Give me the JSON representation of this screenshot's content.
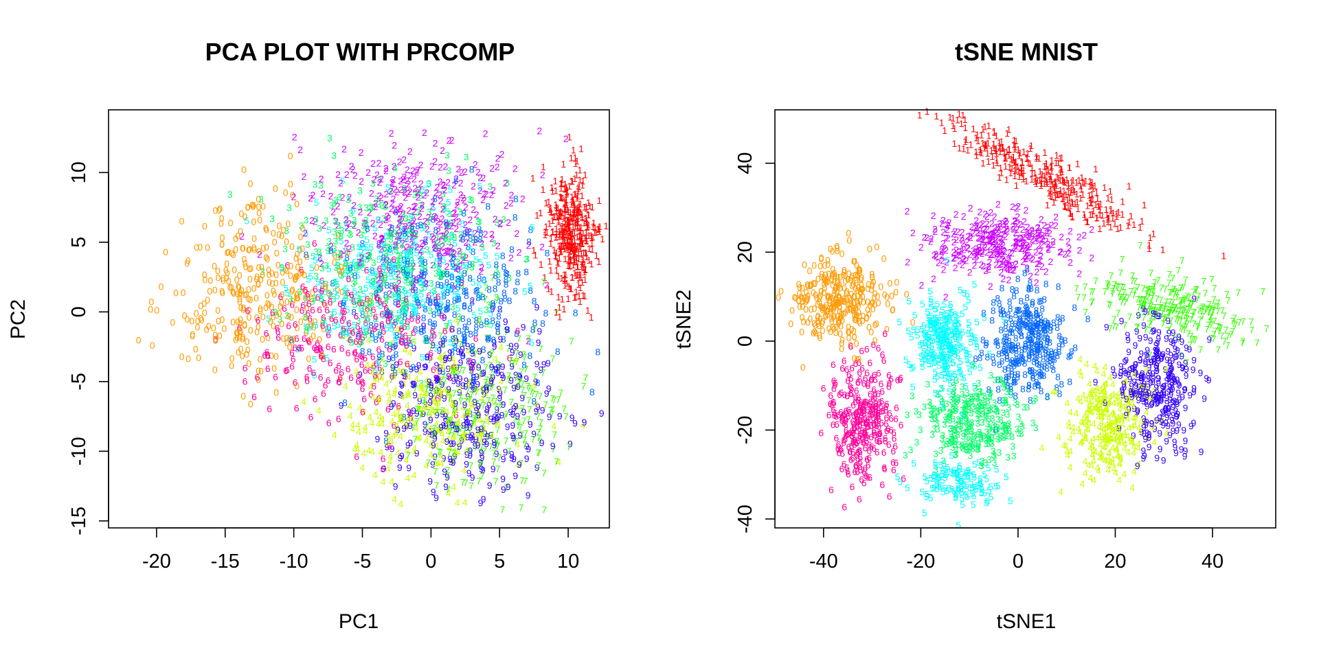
{
  "chart_data": [
    {
      "type": "scatter",
      "title": "PCA PLOT WITH PRCOMP",
      "xlabel": "PC1",
      "ylabel": "PC2",
      "xlim": [
        -23.5,
        13
      ],
      "ylim": [
        -15.5,
        14.5
      ],
      "xticks": [
        -20,
        -15,
        -10,
        -5,
        0,
        5,
        10
      ],
      "yticks": [
        -15,
        -10,
        -5,
        0,
        5,
        10
      ],
      "marker": "digit label",
      "clusters": [
        {
          "label": "0",
          "color": "#FF9900",
          "center": [
            -13,
            1.5
          ],
          "spread": [
            3.2,
            3.2
          ],
          "count": 320
        },
        {
          "label": "1",
          "color": "#FF0000",
          "center": [
            10.2,
            5.5
          ],
          "spread": [
            0.9,
            2.4
          ],
          "count": 380
        },
        {
          "label": "2",
          "color": "#CC00FF",
          "center": [
            -1,
            7
          ],
          "spread": [
            4.0,
            3.0
          ],
          "count": 320
        },
        {
          "label": "3",
          "color": "#00FF66",
          "center": [
            -3,
            4
          ],
          "spread": [
            4.0,
            3.2
          ],
          "count": 300
        },
        {
          "label": "4",
          "color": "#CCFF00",
          "center": [
            0,
            -7
          ],
          "spread": [
            3.2,
            2.6
          ],
          "count": 280
        },
        {
          "label": "5",
          "color": "#00FFFF",
          "center": [
            -3,
            2
          ],
          "spread": [
            3.8,
            2.8
          ],
          "count": 260
        },
        {
          "label": "6",
          "color": "#FF0099",
          "center": [
            -6,
            -2
          ],
          "spread": [
            3.8,
            2.8
          ],
          "count": 240
        },
        {
          "label": "7",
          "color": "#33FF00",
          "center": [
            4,
            -7
          ],
          "spread": [
            3.0,
            3.2
          ],
          "count": 260
        },
        {
          "label": "8",
          "color": "#0066FF",
          "center": [
            1,
            1
          ],
          "spread": [
            4.0,
            3.0
          ],
          "count": 260
        },
        {
          "label": "9",
          "color": "#3300FF",
          "center": [
            3,
            -7
          ],
          "spread": [
            3.2,
            2.8
          ],
          "count": 300
        }
      ]
    },
    {
      "type": "scatter",
      "title": "tSNE MNIST",
      "xlabel": "tSNE1",
      "ylabel": "tSNE2",
      "xlim": [
        -50,
        53
      ],
      "ylim": [
        -42,
        52
      ],
      "xticks": [
        -40,
        -20,
        0,
        20,
        40
      ],
      "yticks": [
        -40,
        -20,
        0,
        20,
        40
      ],
      "marker": "digit label",
      "clusters": [
        {
          "label": "0",
          "color": "#FF9900",
          "center": [
            -37,
            9
          ],
          "spread": [
            5.0,
            4.6
          ],
          "count": 320
        },
        {
          "label": "1",
          "color": "#FF0000",
          "center": [
            6,
            37
          ],
          "spread": [
            12.0,
            2.4
          ],
          "count": 320,
          "angle": -0.55
        },
        {
          "label": "2",
          "color": "#CC00FF",
          "center": [
            -4,
            22
          ],
          "spread": [
            7.5,
            3.5
          ],
          "count": 320
        },
        {
          "label": "3",
          "color": "#00FF66",
          "center": [
            -9,
            -18
          ],
          "spread": [
            5.0,
            5.0
          ],
          "count": 300
        },
        {
          "label": "4",
          "color": "#CCFF00",
          "center": [
            18,
            -18
          ],
          "spread": [
            4.5,
            6.5
          ],
          "count": 300
        },
        {
          "label": "5",
          "color": "#00FFFF",
          "center": [
            -15,
            0
          ],
          "spread": [
            3.2,
            5.0
          ],
          "count": 280
        },
        {
          "label": "6",
          "color": "#FF0099",
          "center": [
            -32,
            -18
          ],
          "spread": [
            3.5,
            7.5
          ],
          "count": 300
        },
        {
          "label": "7",
          "color": "#33FF00",
          "center": [
            32,
            7
          ],
          "spread": [
            9.0,
            3.5
          ],
          "count": 280,
          "angle": -0.35
        },
        {
          "label": "8",
          "color": "#0066FF",
          "center": [
            2,
            0
          ],
          "spread": [
            4.0,
            5.5
          ],
          "count": 300
        },
        {
          "label": "9",
          "color": "#3300FF",
          "center": [
            29,
            -10
          ],
          "spread": [
            4.0,
            7.0
          ],
          "count": 300
        }
      ],
      "extra_clusters": [
        {
          "label": "5",
          "color": "#00FFFF",
          "center": [
            -12,
            -32
          ],
          "spread": [
            4.5,
            2.5
          ],
          "count": 120
        }
      ]
    }
  ]
}
